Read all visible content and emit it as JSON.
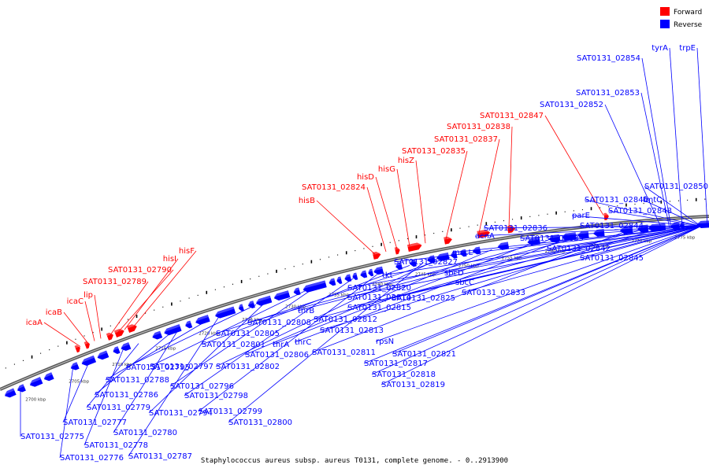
{
  "caption": "Staphylococcus aureus subsp. aureus T0131, complete genome. - 0..2913900",
  "legend": {
    "forward": {
      "label": "Forward",
      "color": "#ff0000"
    },
    "reverse": {
      "label": "Reverse",
      "color": "#0000ff"
    }
  },
  "ticks": [
    "2700 kbp",
    "2705 kbp",
    "2710 kbp",
    "2715 kbp",
    "2720 kbp",
    "2725 kbp",
    "2730 kbp",
    "2735 kbp",
    "2740 kbp",
    "2745 kbp",
    "2750 kbp",
    "2755 kbp",
    "2760 kbp",
    "2765 kbp",
    "2770 kbp",
    "2775 kbp"
  ],
  "forward_labels": [
    "icaA",
    "icaB",
    "icaC",
    "lip",
    "SAT0131_02789",
    "SAT0131_02790",
    "hisI",
    "hisF",
    "hisB",
    "SAT0131_02824",
    "hisD",
    "hisG",
    "hisZ",
    "SAT0131_02835",
    "SAT0131_02837",
    "SAT0131_02838",
    "SAT0131_02847"
  ],
  "reverse_labels_top": [
    "SAT0131_02853",
    "SAT0131_02852",
    "SAT0131_02854",
    "tyrA",
    "trpE"
  ],
  "reverse_labels_bottom": [
    "SAT0131_02775",
    "SAT0131_02776",
    "SAT0131_02777",
    "SAT0131_02778",
    "SAT0131_02779",
    "SAT0131_02780",
    "SAT0131_02786",
    "SAT0131_02787",
    "SAT0131_02788",
    "SAT0131_02794",
    "SAT0131_02795",
    "SAT0131_02796",
    "SAT0131_02797",
    "SAT0131_02798",
    "SAT0131_02799",
    "SAT0131_02800",
    "SAT0131_02801",
    "SAT0131_02802",
    "SAT0131_02805",
    "SAT0131_02806",
    "thrA",
    "thrC",
    "thrB",
    "SAT0131_02808",
    "SAT0131_02811",
    "SAT0131_02812",
    "SAT0131_02813",
    "SAT0131_02814",
    "SAT0131_02815",
    "rpsN",
    "SAT0131_02817",
    "SAT0131_02818",
    "SAT0131_02819",
    "tkt",
    "SAT0131_02820",
    "SAT0131_02821",
    "SAT0131_02825",
    "SAT0131_02827",
    "sbcD",
    "sbcC",
    "mscL",
    "SAT0131_02833",
    "acnA",
    "SAT0131_02836",
    "SAT0131_02839",
    "parE",
    "SAT0131_02842",
    "SAT0131_02844",
    "SAT0131_02845",
    "SAT0131_02846",
    "fmtC",
    "SAT0131_02848",
    "SAT0131_02850"
  ]
}
